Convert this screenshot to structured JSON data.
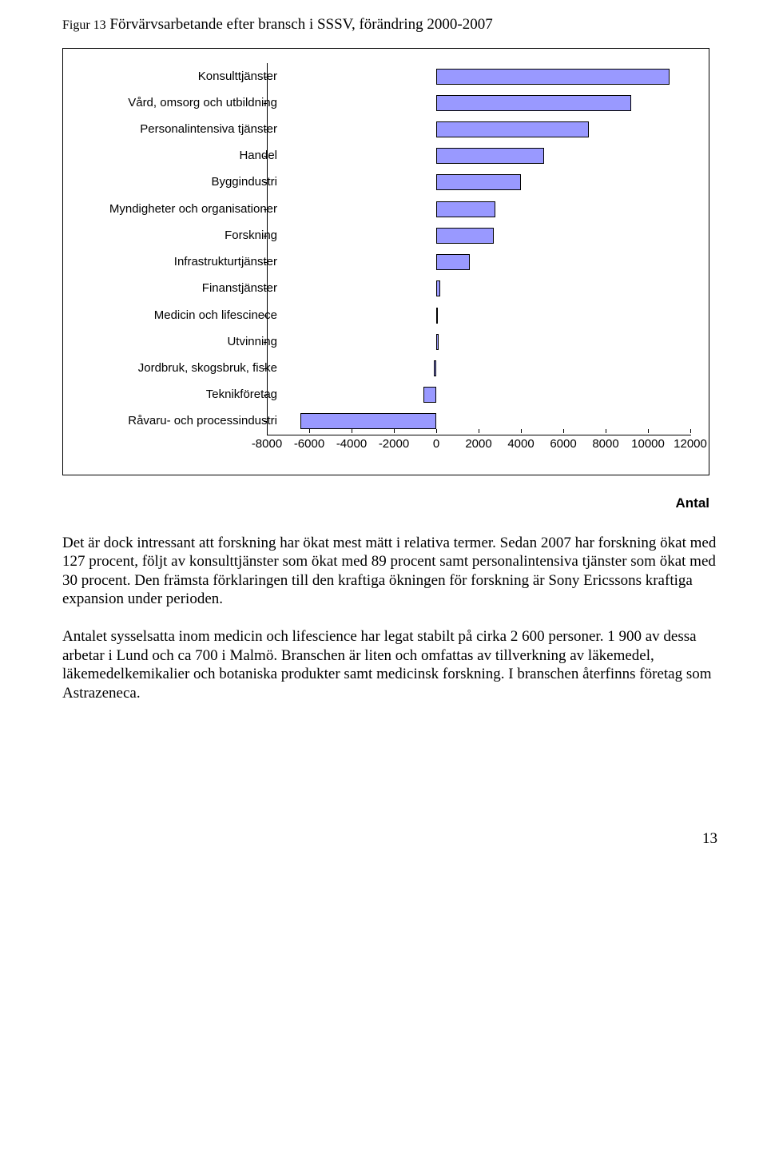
{
  "figure": {
    "label": "Figur 13",
    "title": "Förvärvsarbetande efter bransch i SSSV, förändring 2000-2007"
  },
  "chart": {
    "type": "bar-horizontal",
    "bar_fill": "#9999ff",
    "bar_border": "#000000",
    "background": "#ffffff",
    "axis_color": "#000000",
    "label_fontsize": 15,
    "xmin": -8000,
    "xmax": 12000,
    "xtick_step": 2000,
    "xticks": [
      "-8000",
      "-6000",
      "-4000",
      "-2000",
      "0",
      "2000",
      "4000",
      "6000",
      "8000",
      "10000",
      "12000"
    ],
    "axis_title": "Antal",
    "categories": [
      {
        "label": "Konsulttjänster",
        "value": 11000
      },
      {
        "label": "Vård, omsorg och utbildning",
        "value": 9200
      },
      {
        "label": "Personalintensiva tjänster",
        "value": 7200
      },
      {
        "label": "Handel",
        "value": 5100
      },
      {
        "label": "Byggindustri",
        "value": 4000
      },
      {
        "label": "Myndigheter och organisationer",
        "value": 2800
      },
      {
        "label": "Forskning",
        "value": 2700
      },
      {
        "label": "Infrastrukturtjänster",
        "value": 1600
      },
      {
        "label": "Finanstjänster",
        "value": 200
      },
      {
        "label": "Medicin och lifescinece",
        "value": 50
      },
      {
        "label": "Utvinning",
        "value": 100
      },
      {
        "label": "Jordbruk, skogsbruk, fiske",
        "value": -100
      },
      {
        "label": "Teknikföretag",
        "value": -600
      },
      {
        "label": "Råvaru- och processindustri",
        "value": -6400
      }
    ]
  },
  "paragraphs": {
    "p1": "Det är dock intressant att forskning har ökat mest mätt i relativa termer. Sedan 2007 har forskning ökat med 127 procent, följt av konsulttjänster som ökat med 89 procent samt personalintensiva tjänster som ökat med 30 procent. Den främsta förklaringen till den kraftiga ökningen för forskning är Sony Ericssons kraftiga expansion under perioden.",
    "p2": "Antalet sysselsatta inom medicin och lifescience har legat stabilt på cirka 2 600 personer. 1 900 av dessa arbetar i Lund och ca 700 i Malmö. Branschen är liten och omfattas av tillverkning av läkemedel, läkemedelkemikalier och botaniska produkter samt medicinsk forskning. I branschen återfinns företag som Astrazeneca."
  },
  "pagenum": "13"
}
